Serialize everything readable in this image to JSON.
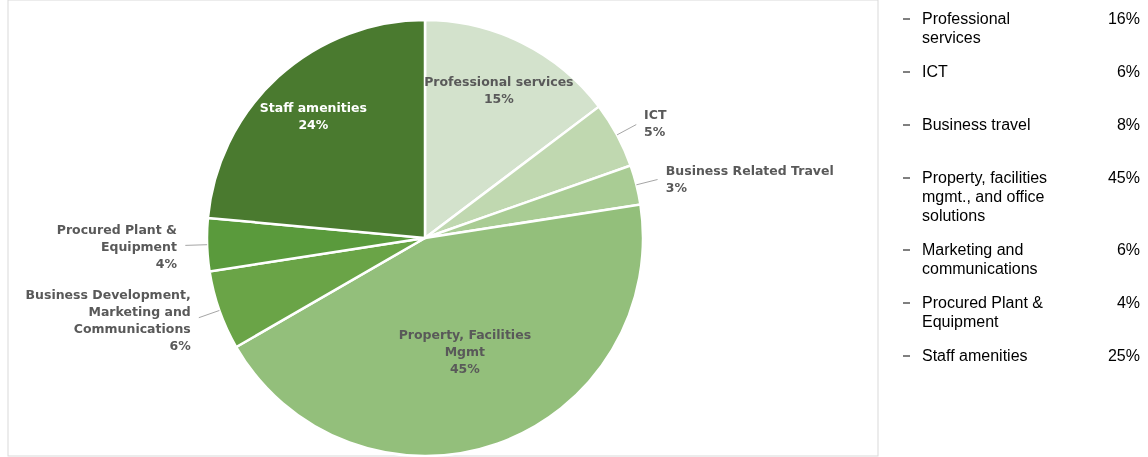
{
  "chart_data": [
    {
      "type": "pie",
      "categories": [
        "Professional services",
        "ICT",
        "Business Related Travel",
        "Property, Facilities Mgmt",
        "Business Development, Marketing and Communications",
        "Procured Plant & Equipment",
        "Staff amenities"
      ],
      "values": [
        15,
        5,
        3,
        45,
        6,
        4,
        24
      ],
      "value_labels": [
        "15%",
        "5%",
        "3%",
        "45%",
        "6%",
        "4%",
        "24%"
      ],
      "colors": [
        "#d3e2cc",
        "#c0d8b0",
        "#a9cc94",
        "#93bf7b",
        "#6aa447",
        "#5a9a3c",
        "#4a7a2f"
      ],
      "data_labels": true
    },
    {
      "type": "other",
      "categories": [
        "Professional services",
        "ICT",
        "Business travel",
        "Property, facilities mgmt., and office solutions",
        "Marketing and communications",
        "Procured Plant & Equipment",
        "Staff amenities"
      ],
      "value_labels": [
        "16%",
        "6%",
        "8%",
        "45%",
        "6%",
        "4%",
        "25%"
      ]
    }
  ]
}
